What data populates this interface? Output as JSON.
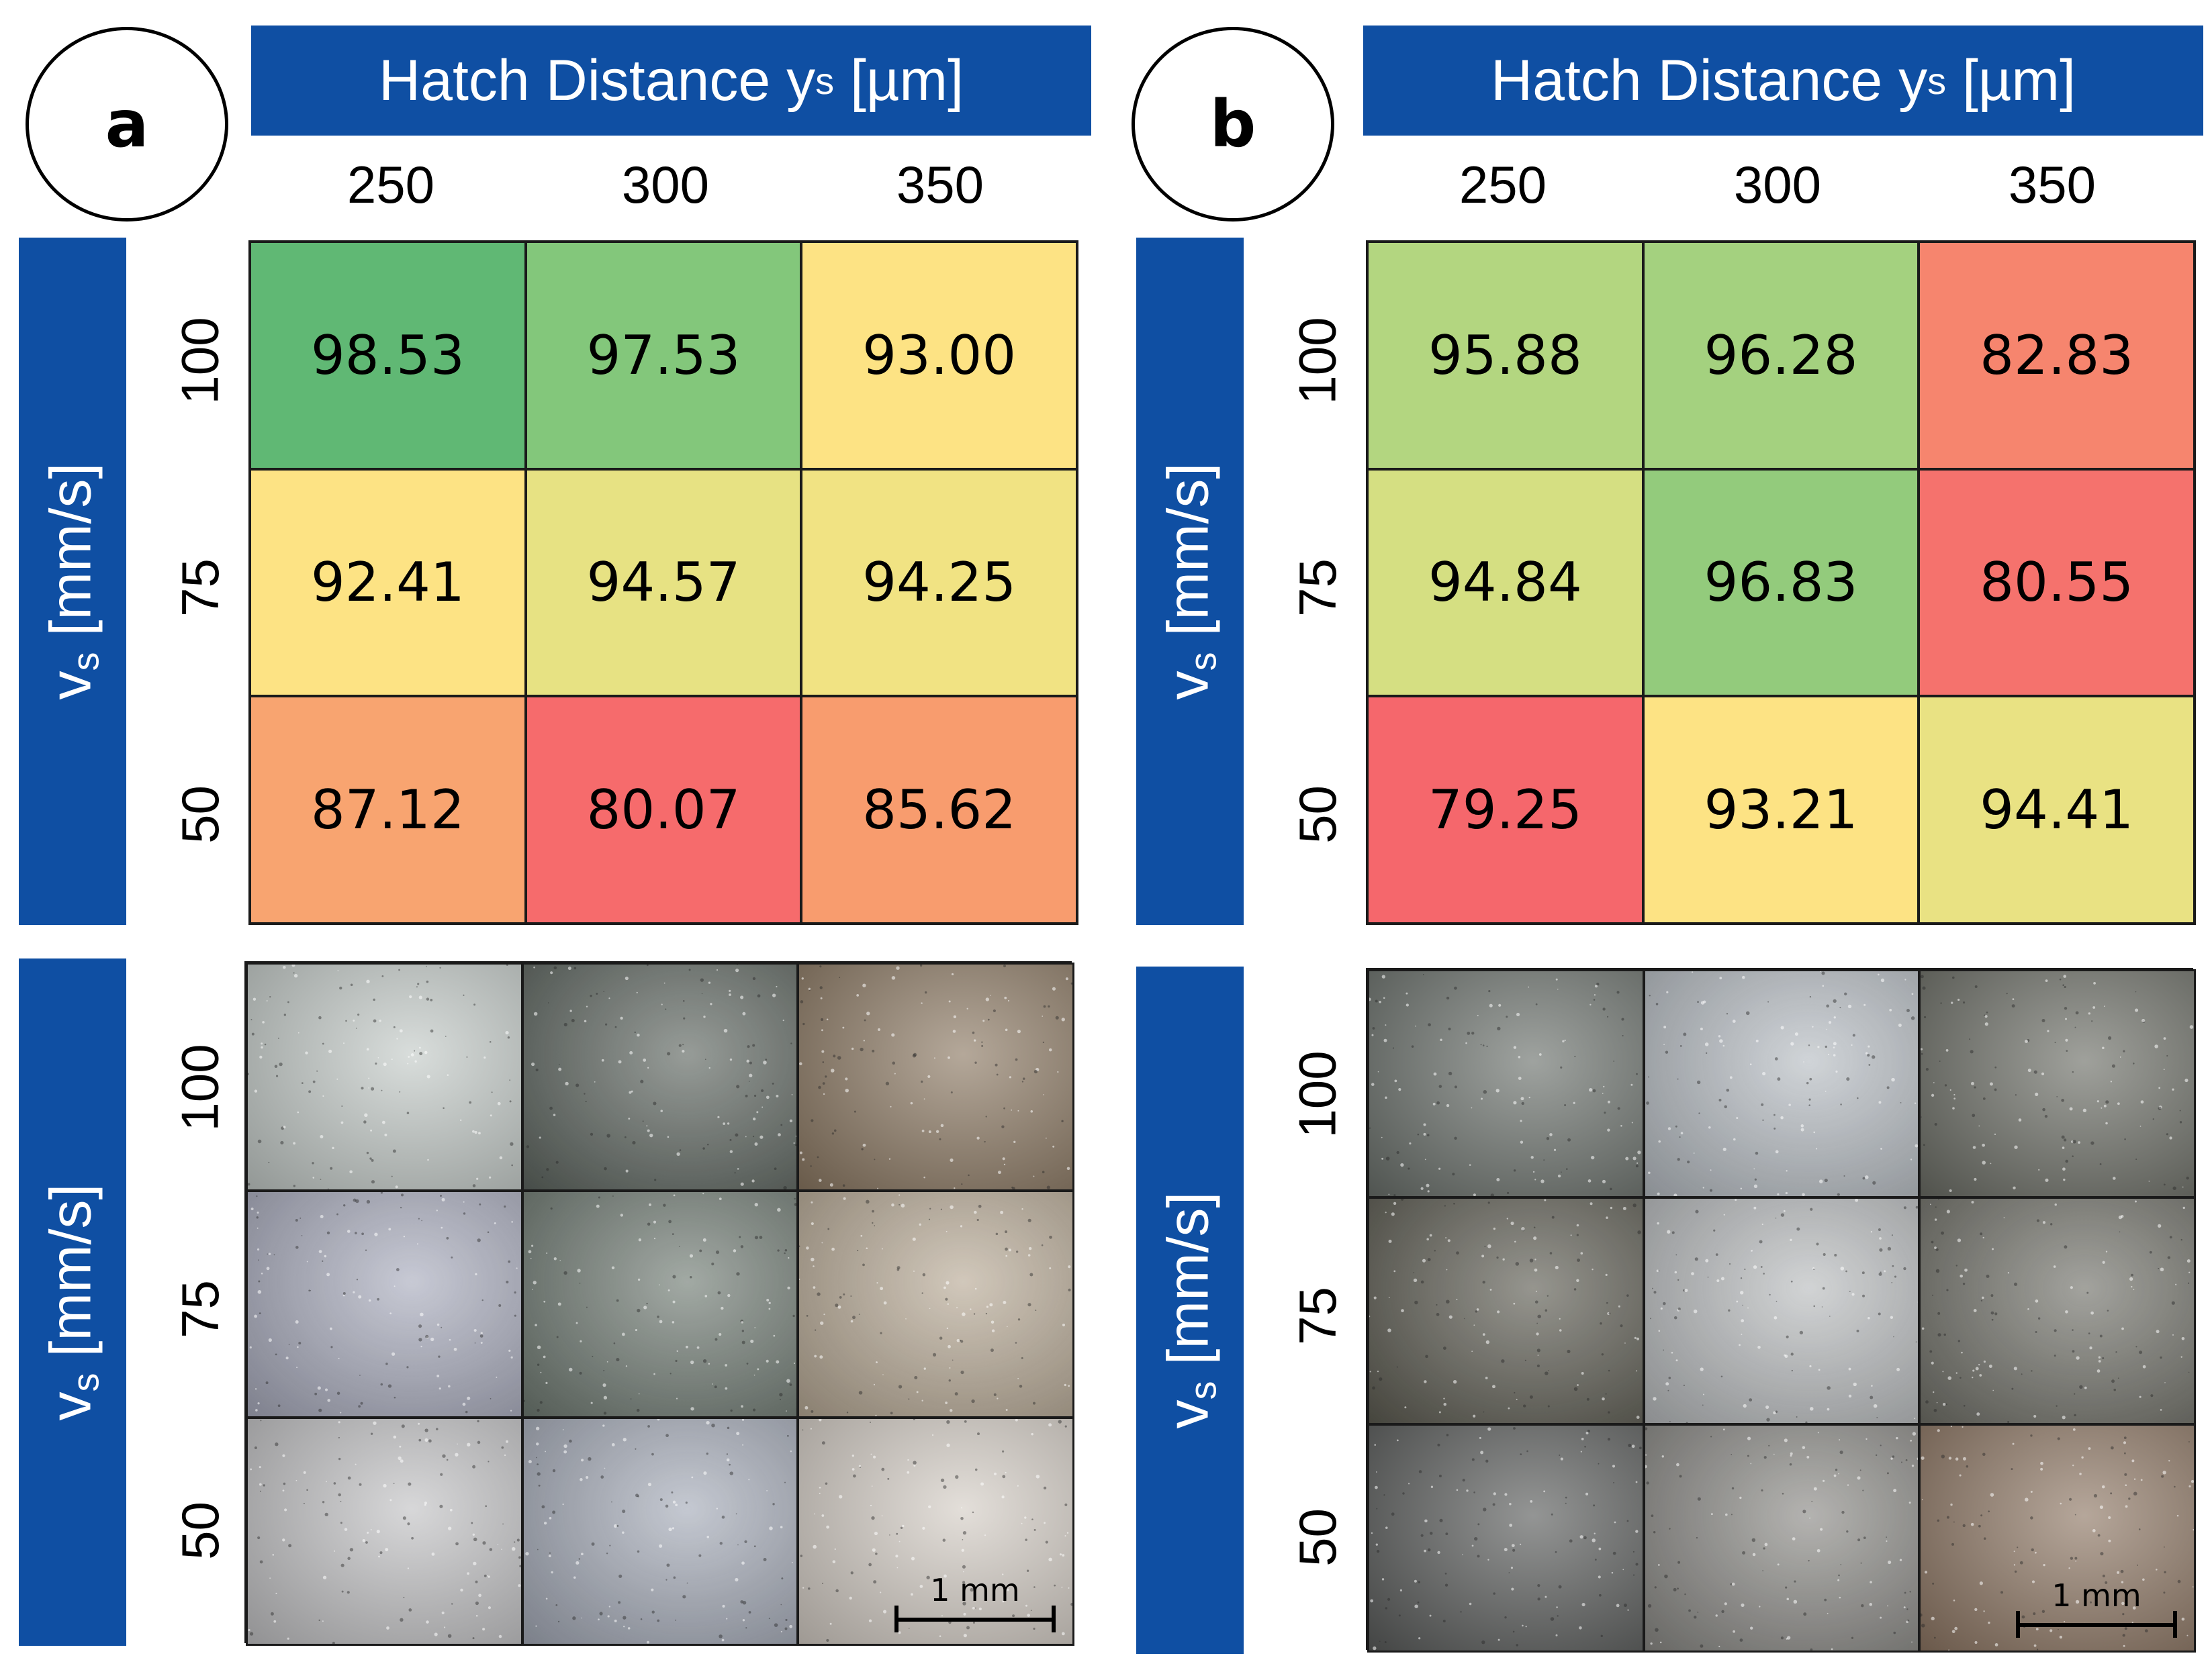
{
  "chart_data": [
    {
      "type": "heatmap",
      "panel_label": "a",
      "x_axis": {
        "label": "Hatch Distance y",
        "label_sub": "s",
        "label_unit": "[µm]",
        "ticks": [
          "250",
          "300",
          "350"
        ]
      },
      "y_axis": {
        "label": "v",
        "label_sub": "s",
        "label_unit": "[mm/s]",
        "ticks": [
          "100",
          "75",
          "50"
        ]
      },
      "values": [
        [
          "98.53",
          "97.53",
          "93.00"
        ],
        [
          "92.41",
          "94.57",
          "94.25"
        ],
        [
          "87.12",
          "80.07",
          "85.62"
        ]
      ],
      "cell_colors": [
        [
          "#60b874",
          "#83c77b",
          "#fde384"
        ],
        [
          "#fde384",
          "#e7e283",
          "#f1e383"
        ],
        [
          "#f8a470",
          "#f66b6c",
          "#f89c6e"
        ]
      ],
      "micrograph_tones": [
        [
          "#c4cbc8",
          "#5e6660",
          "#8c7963"
        ],
        [
          "#a9acbd",
          "#707b73",
          "#b8aa96"
        ],
        [
          "#c2c2c4",
          "#a5abb8",
          "#d4cdc5"
        ]
      ],
      "scale_bar": "1 mm"
    },
    {
      "type": "heatmap",
      "panel_label": "b",
      "x_axis": {
        "label": "Hatch Distance y",
        "label_sub": "s",
        "label_unit": "[µm]",
        "ticks": [
          "250",
          "300",
          "350"
        ]
      },
      "y_axis": {
        "label": "v",
        "label_sub": "s",
        "label_unit": "[mm/s]",
        "ticks": [
          "100",
          "75",
          "50"
        ]
      },
      "values": [
        [
          "95.88",
          "96.28",
          "82.83"
        ],
        [
          "94.84",
          "96.83",
          "80.55"
        ],
        [
          "79.25",
          "93.21",
          "94.41"
        ]
      ],
      "cell_colors": [
        [
          "#b3d680",
          "#a4d17f",
          "#f6856e"
        ],
        [
          "#d5df82",
          "#93cb7c",
          "#f5726d"
        ],
        [
          "#f5676c",
          "#fde384",
          "#e9e283"
        ]
      ],
      "micrograph_tones": [
        [
          "#6b716c",
          "#b7bdc3",
          "#6c6e66"
        ],
        [
          "#5d5c52",
          "#b9bcbe",
          "#717169"
        ],
        [
          "#5a5c5b",
          "#8b8a86",
          "#8e7764"
        ]
      ],
      "scale_bar": "1 mm"
    }
  ]
}
